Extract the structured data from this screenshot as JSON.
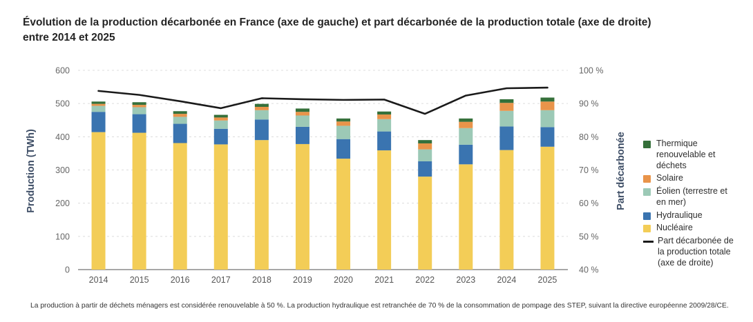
{
  "title": {
    "line1": "Évolution de la production décarbonée en France (axe de gauche) et part décarbonée de la production totale (axe de droite)",
    "line2": "entre 2014 et 2025"
  },
  "footnote": "La production à partir de déchets ménagers est considérée renouvelable à 50 %. La production hydraulique est retranchée de 70 % de la consommation de pompage des STEP, suivant la directive européenne 2009/28/CE.",
  "chart_data": {
    "type": "bar",
    "subtype": "stacked-bars-with-line-dual-axis",
    "categories": [
      "2014",
      "2015",
      "2016",
      "2017",
      "2018",
      "2019",
      "2020",
      "2021",
      "2022",
      "2023",
      "2024",
      "2025"
    ],
    "series": [
      {
        "name": "Nucléaire",
        "color": "#F3CD57",
        "values": [
          414,
          412,
          381,
          377,
          390,
          378,
          334,
          359,
          280,
          317,
          360,
          370
        ]
      },
      {
        "name": "Hydraulique",
        "color": "#3A74B0",
        "values": [
          61,
          56,
          58,
          47,
          62,
          52,
          59,
          57,
          46,
          59,
          71,
          59
        ]
      },
      {
        "name": "Éolien (terrestre et en mer)",
        "color": "#9CC9B6",
        "values": [
          18,
          21,
          21,
          25,
          28,
          34,
          40,
          37,
          36,
          50,
          47,
          51
        ]
      },
      {
        "name": "Solaire",
        "color": "#E9944A",
        "values": [
          6,
          7,
          9,
          9,
          10,
          11,
          13,
          14,
          18,
          19,
          24,
          26
        ]
      },
      {
        "name": "Thermique renouvelable et déchets",
        "color": "#35703A",
        "values": [
          7,
          8,
          8,
          8,
          9,
          10,
          9,
          9,
          10,
          10,
          11,
          12
        ]
      }
    ],
    "line_series": {
      "name": "Part décarbonée de la production totale (axe de droite)",
      "color": "#1A1A1A",
      "axis": "right",
      "values": [
        93.8,
        92.6,
        90.7,
        88.6,
        91.6,
        91.3,
        91.1,
        91.2,
        86.9,
        92.4,
        94.6,
        94.8
      ]
    },
    "left_axis": {
      "label": "Production (TWh)",
      "min": 0,
      "max": 600,
      "step": 100,
      "tick_suffix": ""
    },
    "right_axis": {
      "label": "Part décarbonée",
      "min": 40,
      "max": 100,
      "step": 10,
      "tick_suffix": " %"
    },
    "grid": "horizontal-dashed",
    "legend_position": "right",
    "colors": {
      "grid": "#dcdcdc",
      "baseline": "#8a8a8a",
      "tick_text": "#666666",
      "axis_title_text": "#3E4E66",
      "line": "#1A1A1A"
    }
  },
  "legend": {
    "items": [
      {
        "label": "Thermique renouvelable et déchets",
        "color": "#35703A",
        "marker": "square"
      },
      {
        "label": "Solaire",
        "color": "#E9944A",
        "marker": "square"
      },
      {
        "label": "Éolien (terrestre et en mer)",
        "color": "#9CC9B6",
        "marker": "square"
      },
      {
        "label": "Hydraulique",
        "color": "#3A74B0",
        "marker": "square"
      },
      {
        "label": "Nucléaire",
        "color": "#F3CD57",
        "marker": "square"
      },
      {
        "label": "Part décarbonée de la production totale (axe de droite)",
        "color": "#1A1A1A",
        "marker": "line"
      }
    ]
  }
}
